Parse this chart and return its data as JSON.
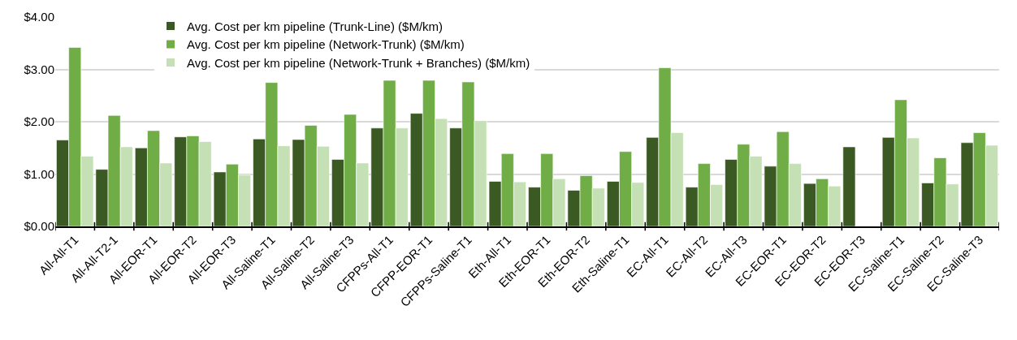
{
  "chart_data": {
    "type": "bar",
    "categories": [
      "All-All-T1",
      "All-All-T2-1",
      "All-EOR-T1",
      "All-EOR-T2",
      "All-EOR-T3",
      "All-Saline-T1",
      "All-Saline-T2",
      "All-Saline-T3",
      "CFPPs-All-T1",
      "CFPP-EOR-T1",
      "CFPPs-Saline-T1",
      "Eth-All-T1",
      "Eth-EOR-T1",
      "Eth-EOR-T2",
      "Eth-Saline-T1",
      "EC-All-T1",
      "EC-All-T2",
      "EC-All-T3",
      "EC-EOR-T1",
      "EC-EOR-T2",
      "EC-EOR-T3",
      "EC-Saline-T1",
      "EC-Saline-T2",
      "EC-Saline-T3"
    ],
    "series": [
      {
        "name": "Avg. Cost per km pipeline (Trunk-Line) ($M/km)",
        "color": "#3b5a23",
        "values": [
          1.65,
          1.09,
          1.5,
          1.71,
          1.04,
          1.67,
          1.66,
          1.28,
          1.88,
          2.16,
          1.88,
          0.86,
          0.75,
          0.69,
          0.86,
          1.7,
          0.75,
          1.28,
          1.15,
          0.82,
          1.52,
          1.7,
          0.83,
          1.6
        ]
      },
      {
        "name": "Avg. Cost per km pipeline (Network-Trunk) ($M/km)",
        "color": "#70ad47",
        "values": [
          3.42,
          2.12,
          1.83,
          1.73,
          1.19,
          2.75,
          1.93,
          2.14,
          2.79,
          2.79,
          2.76,
          1.39,
          1.39,
          0.97,
          1.43,
          3.03,
          1.2,
          1.57,
          1.81,
          0.91,
          null,
          2.42,
          1.31,
          1.79
        ]
      },
      {
        "name": "Avg. Cost per km pipeline (Network-Trunk + Branches) ($M/km)",
        "color": "#c5e0b4",
        "values": [
          1.34,
          1.52,
          1.21,
          1.62,
          0.98,
          1.54,
          1.53,
          1.21,
          1.88,
          2.06,
          2.02,
          0.85,
          0.91,
          0.73,
          0.84,
          1.79,
          0.8,
          1.34,
          1.2,
          0.77,
          null,
          1.69,
          0.81,
          1.55
        ]
      }
    ],
    "ylim": [
      0,
      4
    ],
    "yticks": [
      {
        "value": 0,
        "label": "$0.00"
      },
      {
        "value": 1,
        "label": "$1.00"
      },
      {
        "value": 2,
        "label": "$2.00"
      },
      {
        "value": 3,
        "label": "$3.00"
      },
      {
        "value": 4,
        "label": "$4.00"
      }
    ],
    "grid": "y",
    "legend": "top"
  }
}
